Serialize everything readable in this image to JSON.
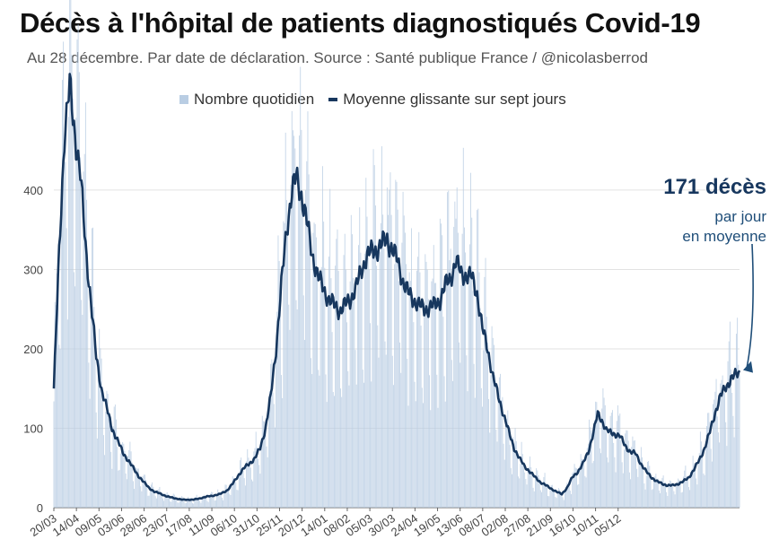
{
  "title": "Décès à l'hôpital de patients diagnostiqués Covid-19",
  "subtitle": "Au 28 décembre. Par date de déclaration. Source : Santé publique France / @nicolasberrod",
  "legend": {
    "bars": "Nombre quotidien",
    "line": "Moyenne glissante sur sept jours"
  },
  "annotation": {
    "value": "171 décès",
    "line1": "par jour",
    "line2": "en moyenne"
  },
  "colors": {
    "bars": "#b9cde3",
    "line": "#17375e",
    "grid": "#e2e2e2",
    "annotation": "#1f4e79"
  },
  "chart_data": {
    "type": "bar",
    "series": [
      {
        "name": "Nombre quotidien",
        "type": "bar"
      },
      {
        "name": "Moyenne glissante sur sept jours",
        "type": "line"
      }
    ],
    "x_tick_labels": [
      "20/03",
      "14/04",
      "09/05",
      "03/06",
      "28/06",
      "23/07",
      "17/08",
      "11/09",
      "06/10",
      "31/10",
      "25/11",
      "20/12",
      "14/01",
      "08/02",
      "05/03",
      "30/03",
      "24/04",
      "19/05",
      "13/06",
      "08/07",
      "02/08",
      "27/08",
      "21/09",
      "16/10",
      "10/11",
      "05/12"
    ],
    "y_ticks": [
      0,
      100,
      200,
      300,
      400
    ],
    "ylim": [
      0,
      540
    ],
    "grid": "horizontal",
    "line_points": [
      [
        "20/03",
        150
      ],
      [
        "25/03",
        320
      ],
      [
        "30/03",
        470
      ],
      [
        "04/04",
        530
      ],
      [
        "09/04",
        470
      ],
      [
        "14/04",
        420
      ],
      [
        "19/04",
        330
      ],
      [
        "24/04",
        260
      ],
      [
        "29/04",
        190
      ],
      [
        "04/05",
        150
      ],
      [
        "09/05",
        125
      ],
      [
        "14/05",
        100
      ],
      [
        "19/05",
        85
      ],
      [
        "24/05",
        70
      ],
      [
        "29/05",
        60
      ],
      [
        "03/06",
        50
      ],
      [
        "08/06",
        40
      ],
      [
        "13/06",
        32
      ],
      [
        "18/06",
        25
      ],
      [
        "23/06",
        20
      ],
      [
        "28/06",
        18
      ],
      [
        "05/07",
        14
      ],
      [
        "12/07",
        12
      ],
      [
        "19/07",
        10
      ],
      [
        "23/07",
        10
      ],
      [
        "30/07",
        10
      ],
      [
        "06/08",
        12
      ],
      [
        "12/08",
        14
      ],
      [
        "17/08",
        15
      ],
      [
        "24/08",
        17
      ],
      [
        "31/08",
        22
      ],
      [
        "05/09",
        30
      ],
      [
        "11/09",
        42
      ],
      [
        "16/09",
        50
      ],
      [
        "21/09",
        56
      ],
      [
        "26/09",
        62
      ],
      [
        "01/10",
        75
      ],
      [
        "06/10",
        100
      ],
      [
        "11/10",
        140
      ],
      [
        "16/10",
        200
      ],
      [
        "21/10",
        280
      ],
      [
        "26/10",
        350
      ],
      [
        "31/10",
        400
      ],
      [
        "04/11",
        415
      ],
      [
        "09/11",
        395
      ],
      [
        "14/11",
        360
      ],
      [
        "19/11",
        320
      ],
      [
        "25/11",
        290
      ],
      [
        "30/11",
        275
      ],
      [
        "05/12",
        262
      ],
      [
        "10/12",
        255
      ],
      [
        "15/12",
        248
      ],
      [
        "20/12",
        255
      ],
      [
        "25/12",
        262
      ],
      [
        "30/12",
        275
      ],
      [
        "05/01",
        300
      ],
      [
        "10/01",
        318
      ],
      [
        "14/01",
        322
      ],
      [
        "19/01",
        325
      ],
      [
        "24/01",
        332
      ],
      [
        "29/01",
        338
      ],
      [
        "03/02",
        325
      ],
      [
        "08/02",
        310
      ],
      [
        "13/02",
        285
      ],
      [
        "18/02",
        270
      ],
      [
        "23/02",
        262
      ],
      [
        "28/02",
        255
      ],
      [
        "05/03",
        250
      ],
      [
        "10/03",
        252
      ],
      [
        "15/03",
        255
      ],
      [
        "20/03",
        262
      ],
      [
        "25/03",
        280
      ],
      [
        "30/03",
        290
      ],
      [
        "04/04",
        310
      ],
      [
        "09/04",
        295
      ],
      [
        "14/04",
        292
      ],
      [
        "19/04",
        290
      ],
      [
        "24/04",
        270
      ],
      [
        "29/04",
        225
      ],
      [
        "04/05",
        200
      ],
      [
        "09/05",
        165
      ],
      [
        "14/05",
        140
      ],
      [
        "19/05",
        118
      ],
      [
        "24/05",
        95
      ],
      [
        "29/05",
        75
      ],
      [
        "03/06",
        62
      ],
      [
        "08/06",
        52
      ],
      [
        "13/06",
        45
      ],
      [
        "18/06",
        38
      ],
      [
        "23/06",
        32
      ],
      [
        "28/06",
        28
      ],
      [
        "03/07",
        24
      ],
      [
        "08/07",
        20
      ],
      [
        "13/07",
        17
      ],
      [
        "18/07",
        25
      ],
      [
        "23/07",
        38
      ],
      [
        "28/07",
        45
      ],
      [
        "02/08",
        55
      ],
      [
        "07/08",
        70
      ],
      [
        "12/08",
        95
      ],
      [
        "16/08",
        118
      ],
      [
        "20/08",
        110
      ],
      [
        "24/08",
        98
      ],
      [
        "27/08",
        95
      ],
      [
        "01/09",
        93
      ],
      [
        "06/09",
        90
      ],
      [
        "11/09",
        78
      ],
      [
        "16/09",
        70
      ],
      [
        "21/09",
        68
      ],
      [
        "26/09",
        55
      ],
      [
        "01/10",
        45
      ],
      [
        "06/10",
        38
      ],
      [
        "11/10",
        33
      ],
      [
        "16/10",
        30
      ],
      [
        "21/10",
        28
      ],
      [
        "26/10",
        28
      ],
      [
        "31/10",
        30
      ],
      [
        "05/11",
        33
      ],
      [
        "10/11",
        38
      ],
      [
        "15/11",
        48
      ],
      [
        "20/11",
        60
      ],
      [
        "25/11",
        75
      ],
      [
        "30/11",
        95
      ],
      [
        "05/12",
        120
      ],
      [
        "10/12",
        140
      ],
      [
        "15/12",
        152
      ],
      [
        "20/12",
        162
      ],
      [
        "25/12",
        168
      ],
      [
        "28/12",
        171
      ]
    ]
  }
}
